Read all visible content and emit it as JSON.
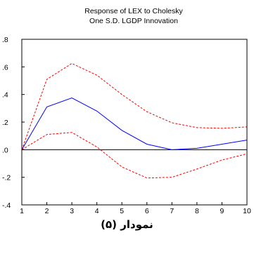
{
  "chart_data": {
    "type": "line",
    "title_lines": [
      "Response of LEX to Cholesky",
      "One S.D. LGDP Innovation"
    ],
    "x": [
      1,
      2,
      3,
      4,
      5,
      6,
      7,
      8,
      9,
      10
    ],
    "xlim": [
      1,
      10
    ],
    "ylim": [
      -0.4,
      0.8
    ],
    "x_ticks": [
      "1",
      "2",
      "3",
      "4",
      "5",
      "6",
      "7",
      "8",
      "9",
      "10"
    ],
    "y_ticks": [
      {
        "value": 0.8,
        "label": ".8"
      },
      {
        "value": 0.6,
        "label": ".6"
      },
      {
        "value": 0.4,
        "label": ".4"
      },
      {
        "value": 0.2,
        "label": ".2"
      },
      {
        "value": 0.0,
        "label": ".0"
      },
      {
        "value": -0.2,
        "label": "-.2"
      },
      {
        "value": -0.4,
        "label": "-.4"
      }
    ],
    "zero_line": true,
    "grid": false,
    "series": [
      {
        "style": "solid",
        "color": "#0000ff",
        "values": [
          0.0,
          0.31,
          0.375,
          0.28,
          0.14,
          0.04,
          0.0,
          0.01,
          0.04,
          0.07
        ]
      },
      {
        "style": "dashed",
        "color": "#ff0000",
        "values": [
          0.0,
          0.51,
          0.625,
          0.54,
          0.4,
          0.275,
          0.195,
          0.16,
          0.155,
          0.165
        ]
      },
      {
        "style": "dashed",
        "color": "#ff0000",
        "values": [
          0.0,
          0.11,
          0.125,
          0.02,
          -0.125,
          -0.205,
          -0.2,
          -0.14,
          -0.075,
          -0.03
        ]
      }
    ]
  },
  "caption": "نمودار (۵)"
}
